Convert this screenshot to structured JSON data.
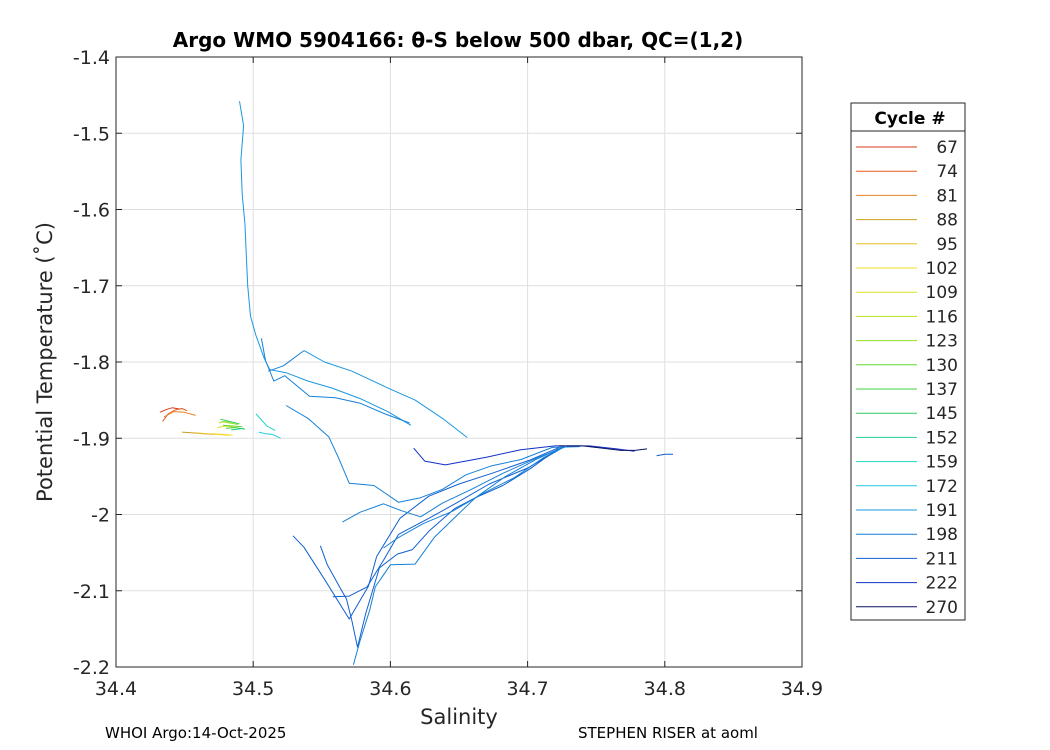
{
  "chart_data": {
    "type": "line",
    "title": "Argo WMO 5904166: θ-S below 500 dbar,  QC=(1,2)",
    "xlabel": "Salinity",
    "ylabel": "Potential Temperature (˚C)",
    "xlim": [
      34.4,
      34.9
    ],
    "ylim": [
      -2.2,
      -1.4
    ],
    "xticks": [
      "34.4",
      "34.5",
      "34.6",
      "34.7",
      "34.8",
      "34.9"
    ],
    "yticks": [
      "-2.2",
      "-2.1",
      "-2",
      "-1.9",
      "-1.8",
      "-1.7",
      "-1.6",
      "-1.5",
      "-1.4"
    ],
    "grid": true,
    "legend_title": "Cycle #",
    "legend_position": "outside-right",
    "series": [
      {
        "name": "67",
        "color": "#d93a1f",
        "points": [
          [
            34.432,
            -1.866
          ],
          [
            34.437,
            -1.862
          ],
          [
            34.441,
            -1.86
          ],
          [
            34.447,
            -1.862
          ]
        ]
      },
      {
        "name": "74",
        "color": "#e85a1a",
        "points": [
          [
            34.434,
            -1.878
          ],
          [
            34.438,
            -1.868
          ],
          [
            34.443,
            -1.863
          ],
          [
            34.448,
            -1.861
          ],
          [
            34.452,
            -1.864
          ]
        ]
      },
      {
        "name": "81",
        "color": "#e88020",
        "points": [
          [
            34.435,
            -1.872
          ],
          [
            34.442,
            -1.865
          ],
          [
            34.45,
            -1.866
          ],
          [
            34.458,
            -1.87
          ]
        ]
      },
      {
        "name": "88",
        "color": "#c8a020",
        "points": [
          [
            34.448,
            -1.892
          ],
          [
            34.456,
            -1.893
          ],
          [
            34.464,
            -1.894
          ],
          [
            34.472,
            -1.895
          ]
        ]
      },
      {
        "name": "95",
        "color": "#e8c020",
        "points": [
          [
            34.458,
            -1.893
          ],
          [
            34.466,
            -1.894
          ],
          [
            34.474,
            -1.895
          ],
          [
            34.483,
            -1.896
          ]
        ]
      },
      {
        "name": "102",
        "color": "#f0e020",
        "points": [
          [
            34.47,
            -1.894
          ],
          [
            34.478,
            -1.895
          ],
          [
            34.485,
            -1.896
          ]
        ]
      },
      {
        "name": "109",
        "color": "#d8e020",
        "points": [
          [
            34.474,
            -1.886
          ],
          [
            34.48,
            -1.884
          ],
          [
            34.487,
            -1.886
          ]
        ]
      },
      {
        "name": "116",
        "color": "#b8e020",
        "points": [
          [
            34.475,
            -1.88
          ],
          [
            34.479,
            -1.878
          ],
          [
            34.484,
            -1.88
          ]
        ]
      },
      {
        "name": "123",
        "color": "#90e020",
        "points": [
          [
            34.477,
            -1.878
          ],
          [
            34.483,
            -1.88
          ],
          [
            34.489,
            -1.882
          ]
        ]
      },
      {
        "name": "130",
        "color": "#60d830",
        "points": [
          [
            34.478,
            -1.883
          ],
          [
            34.485,
            -1.884
          ],
          [
            34.492,
            -1.885
          ]
        ]
      },
      {
        "name": "137",
        "color": "#40d040",
        "points": [
          [
            34.48,
            -1.887
          ],
          [
            34.487,
            -1.886
          ],
          [
            34.494,
            -1.888
          ]
        ]
      },
      {
        "name": "145",
        "color": "#30c860",
        "points": [
          [
            34.476,
            -1.875
          ],
          [
            34.483,
            -1.878
          ],
          [
            34.49,
            -1.881
          ]
        ]
      },
      {
        "name": "152",
        "color": "#20d090",
        "points": [
          [
            34.484,
            -1.889
          ],
          [
            34.489,
            -1.888
          ],
          [
            34.493,
            -1.887
          ]
        ]
      },
      {
        "name": "159",
        "color": "#20d8c8",
        "points": [
          [
            34.502,
            -1.868
          ],
          [
            34.506,
            -1.876
          ],
          [
            34.51,
            -1.884
          ],
          [
            34.516,
            -1.89
          ]
        ]
      },
      {
        "name": "172",
        "color": "#20c8e0",
        "points": [
          [
            34.504,
            -1.892
          ],
          [
            34.509,
            -1.894
          ],
          [
            34.514,
            -1.895
          ],
          [
            34.52,
            -1.9
          ]
        ]
      },
      {
        "name": "191",
        "color": "#1a98e0",
        "points": [
          [
            34.49,
            -1.458
          ],
          [
            34.493,
            -1.49
          ],
          [
            34.491,
            -1.535
          ],
          [
            34.492,
            -1.58
          ],
          [
            34.494,
            -1.62
          ],
          [
            34.495,
            -1.66
          ],
          [
            34.496,
            -1.7
          ],
          [
            34.498,
            -1.74
          ],
          [
            34.502,
            -1.765
          ],
          [
            34.508,
            -1.795
          ],
          [
            34.512,
            -1.81
          ],
          [
            34.524,
            -1.814
          ],
          [
            34.54,
            -1.825
          ],
          [
            34.557,
            -1.834
          ],
          [
            34.578,
            -1.848
          ],
          [
            34.598,
            -1.865
          ],
          [
            34.615,
            -1.883
          ]
        ]
      },
      {
        "name": "198",
        "color": "#1580d8",
        "points": [
          [
            34.524,
            -1.857
          ],
          [
            34.54,
            -1.874
          ],
          [
            34.555,
            -1.898
          ],
          [
            34.562,
            -1.925
          ],
          [
            34.57,
            -1.959
          ],
          [
            34.588,
            -1.962
          ],
          [
            34.606,
            -1.984
          ],
          [
            34.622,
            -1.978
          ],
          [
            34.638,
            -1.967
          ],
          [
            34.655,
            -1.948
          ],
          [
            34.674,
            -1.936
          ],
          [
            34.695,
            -1.928
          ],
          [
            34.718,
            -1.912
          ],
          [
            34.738,
            -1.911
          ]
        ]
      },
      {
        "name": "211",
        "color": "#1060d0",
        "points": [
          [
            34.529,
            -2.028
          ],
          [
            34.537,
            -2.043
          ],
          [
            34.552,
            -2.085
          ],
          [
            34.57,
            -2.137
          ],
          [
            34.584,
            -2.094
          ],
          [
            34.59,
            -2.055
          ],
          [
            34.607,
            -2.005
          ],
          [
            34.628,
            -1.976
          ],
          [
            34.65,
            -1.96
          ],
          [
            34.674,
            -1.946
          ],
          [
            34.701,
            -1.929
          ],
          [
            34.723,
            -1.912
          ]
        ]
      },
      {
        "name": "222",
        "color": "#1030c8",
        "points": [
          [
            34.617,
            -1.913
          ],
          [
            34.625,
            -1.93
          ],
          [
            34.64,
            -1.935
          ],
          [
            34.67,
            -1.925
          ],
          [
            34.695,
            -1.915
          ],
          [
            34.72,
            -1.91
          ],
          [
            34.745,
            -1.91
          ],
          [
            34.765,
            -1.914
          ],
          [
            34.778,
            -1.917
          ]
        ]
      },
      {
        "name": "270",
        "color": "#0a1060",
        "points": [
          [
            34.723,
            -1.91
          ],
          [
            34.74,
            -1.91
          ],
          [
            34.755,
            -1.913
          ],
          [
            34.768,
            -1.916
          ],
          [
            34.778,
            -1.916
          ],
          [
            34.787,
            -1.914
          ]
        ]
      },
      {
        "name": "",
        "color": "#1a98e0",
        "points": [
          [
            34.537,
            -1.785
          ],
          [
            34.552,
            -1.8
          ],
          [
            34.572,
            -1.812
          ],
          [
            34.598,
            -1.834
          ],
          [
            34.618,
            -1.85
          ],
          [
            34.638,
            -1.874
          ],
          [
            34.656,
            -1.899
          ]
        ]
      },
      {
        "name": "",
        "color": "#1580d8",
        "points": [
          [
            34.506,
            -1.769
          ],
          [
            34.509,
            -1.798
          ],
          [
            34.515,
            -1.825
          ],
          [
            34.523,
            -1.818
          ],
          [
            34.541,
            -1.845
          ],
          [
            34.56,
            -1.847
          ],
          [
            34.578,
            -1.854
          ],
          [
            34.596,
            -1.868
          ],
          [
            34.614,
            -1.88
          ]
        ]
      },
      {
        "name": "",
        "color": "#1580d8",
        "points": [
          [
            34.511,
            -1.812
          ],
          [
            34.522,
            -1.805
          ],
          [
            34.537,
            -1.785
          ]
        ]
      },
      {
        "name": "",
        "color": "#1060d0",
        "points": [
          [
            34.549,
            -2.041
          ],
          [
            34.554,
            -2.066
          ],
          [
            34.562,
            -2.092
          ],
          [
            34.568,
            -2.111
          ],
          [
            34.572,
            -2.14
          ],
          [
            34.576,
            -2.174
          ],
          [
            34.582,
            -2.13
          ],
          [
            34.592,
            -2.07
          ],
          [
            34.605,
            -2.052
          ],
          [
            34.616,
            -2.046
          ],
          [
            34.628,
            -2.022
          ],
          [
            34.647,
            -1.992
          ],
          [
            34.662,
            -1.978
          ],
          [
            34.682,
            -1.962
          ],
          [
            34.702,
            -1.94
          ],
          [
            34.722,
            -1.914
          ]
        ]
      },
      {
        "name": "",
        "color": "#1060d0",
        "points": [
          [
            34.558,
            -2.108
          ],
          [
            34.57,
            -2.107
          ],
          [
            34.583,
            -2.095
          ],
          [
            34.595,
            -2.06
          ],
          [
            34.606,
            -2.026
          ],
          [
            34.628,
            -2.005
          ],
          [
            34.648,
            -1.985
          ],
          [
            34.672,
            -1.96
          ],
          [
            34.7,
            -1.939
          ],
          [
            34.724,
            -1.914
          ]
        ]
      },
      {
        "name": "",
        "color": "#1580d8",
        "points": [
          [
            34.565,
            -2.01
          ],
          [
            34.578,
            -1.997
          ],
          [
            34.595,
            -1.986
          ],
          [
            34.608,
            -1.995
          ],
          [
            34.622,
            -2.003
          ],
          [
            34.638,
            -1.985
          ],
          [
            34.658,
            -1.968
          ],
          [
            34.682,
            -1.946
          ],
          [
            34.708,
            -1.925
          ],
          [
            34.728,
            -1.911
          ]
        ]
      },
      {
        "name": "",
        "color": "#1580d8",
        "points": [
          [
            34.573,
            -2.197
          ],
          [
            34.578,
            -2.165
          ],
          [
            34.585,
            -2.125
          ],
          [
            34.589,
            -2.095
          ],
          [
            34.6,
            -2.066
          ],
          [
            34.618,
            -2.065
          ],
          [
            34.632,
            -2.03
          ],
          [
            34.648,
            -2.002
          ],
          [
            34.662,
            -1.978
          ],
          [
            34.684,
            -1.95
          ],
          [
            34.706,
            -1.928
          ],
          [
            34.725,
            -1.912
          ]
        ]
      },
      {
        "name": "",
        "color": "#1580d8",
        "points": [
          [
            34.595,
            -2.044
          ],
          [
            34.606,
            -2.03
          ],
          [
            34.624,
            -2.012
          ],
          [
            34.645,
            -1.996
          ],
          [
            34.668,
            -1.972
          ],
          [
            34.69,
            -1.952
          ],
          [
            34.712,
            -1.925
          ],
          [
            34.728,
            -1.91
          ]
        ]
      },
      {
        "name": "",
        "color": "#1060d0",
        "points": [
          [
            34.794,
            -1.923
          ],
          [
            34.8,
            -1.921
          ],
          [
            34.806,
            -1.921
          ]
        ]
      }
    ]
  },
  "footer": {
    "left": "WHOI Argo:14-Oct-2025",
    "right": "STEPHEN RISER at aoml"
  }
}
